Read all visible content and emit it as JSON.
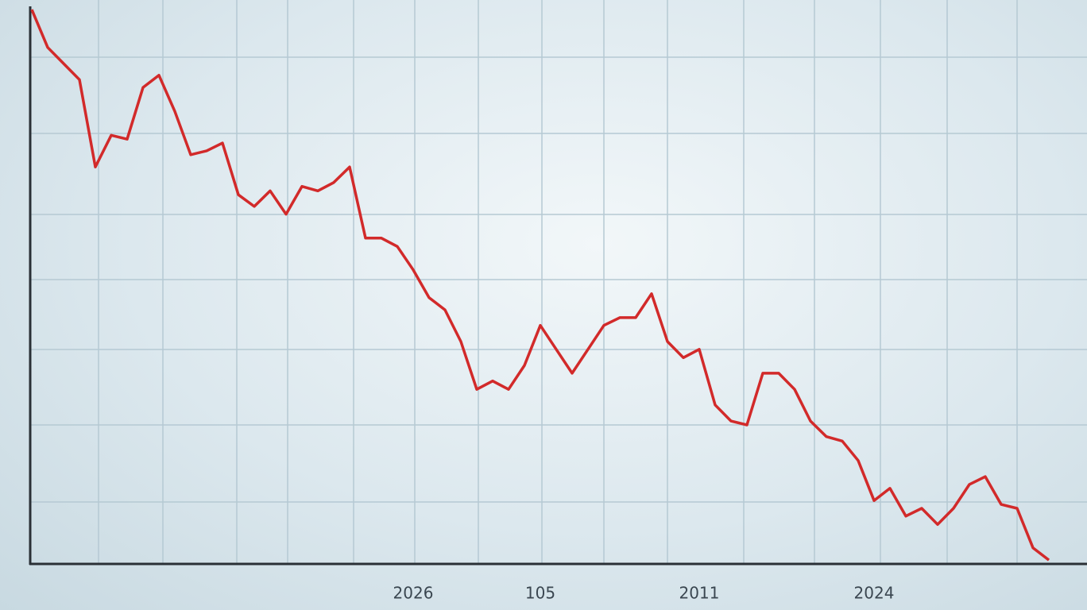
{
  "chart_data": {
    "type": "line",
    "categories": [
      null,
      null,
      null,
      null,
      null,
      null,
      null,
      null,
      null,
      null,
      null,
      null,
      null,
      null,
      null,
      null,
      null,
      null,
      null,
      null,
      null,
      null,
      null,
      null,
      "2026",
      null,
      null,
      null,
      null,
      null,
      null,
      null,
      "105",
      null,
      null,
      null,
      null,
      null,
      null,
      null,
      null,
      null,
      "2011",
      null,
      null,
      null,
      null,
      null,
      null,
      null,
      null,
      null,
      null,
      "2024",
      null,
      null,
      null,
      null,
      null,
      null,
      null,
      null,
      null,
      null,
      null
    ],
    "values": [
      99.7,
      92.9,
      90.0,
      87.1,
      71.4,
      77.1,
      76.4,
      85.7,
      87.9,
      81.4,
      73.6,
      74.3,
      75.7,
      66.4,
      64.3,
      67.1,
      62.9,
      67.9,
      67.1,
      68.6,
      71.4,
      58.6,
      58.6,
      57.1,
      52.9,
      47.9,
      45.7,
      40.0,
      31.4,
      32.9,
      31.4,
      35.7,
      42.9,
      38.6,
      34.3,
      38.6,
      42.9,
      44.3,
      44.3,
      48.6,
      40.0,
      37.1,
      38.6,
      28.6,
      25.7,
      25.0,
      34.3,
      34.3,
      31.4,
      25.7,
      22.9,
      22.1,
      18.6,
      11.4,
      13.6,
      8.6,
      10.0,
      7.1,
      10.0,
      14.3,
      15.7,
      10.7,
      10.0,
      2.9,
      0.7
    ],
    "color": "#d22a2a",
    "ylim": [
      0,
      100
    ]
  }
}
